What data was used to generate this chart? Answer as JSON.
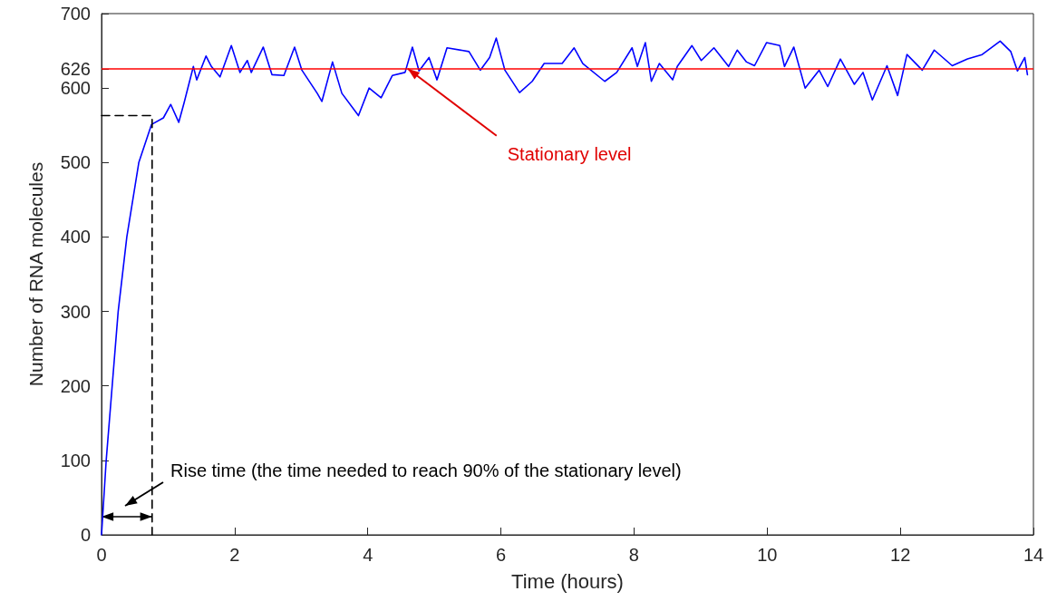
{
  "chart_data": {
    "type": "line",
    "xlabel": "Time (hours)",
    "ylabel": "Number of RNA molecules",
    "xlim": [
      0,
      14
    ],
    "xticks": [
      0,
      2,
      4,
      6,
      8,
      10,
      12,
      14
    ],
    "ylim": [
      0,
      700
    ],
    "yticks": [
      0,
      100,
      200,
      300,
      400,
      500,
      600,
      {
        "value": 626,
        "label": "626"
      },
      700
    ],
    "grid": false,
    "marker": "none",
    "line_style": "solid",
    "series": [
      {
        "color": "#0000ff",
        "x": [
          0,
          0.07,
          0.16,
          0.25,
          0.38,
          0.56,
          0.75,
          0.93,
          1.04,
          1.16,
          1.24,
          1.38,
          1.43,
          1.57,
          1.65,
          1.78,
          1.95,
          2.08,
          2.19,
          2.25,
          2.43,
          2.56,
          2.74,
          2.9,
          3.01,
          3.24,
          3.31,
          3.47,
          3.61,
          3.86,
          4.02,
          4.2,
          4.37,
          4.56,
          4.67,
          4.77,
          4.92,
          5.04,
          5.19,
          5.52,
          5.69,
          5.83,
          5.93,
          6.06,
          6.28,
          6.47,
          6.65,
          6.92,
          7.1,
          7.23,
          7.56,
          7.74,
          7.97,
          8.05,
          8.17,
          8.26,
          8.38,
          8.58,
          8.65,
          8.87,
          9.01,
          9.2,
          9.42,
          9.55,
          9.69,
          9.81,
          9.99,
          10.19,
          10.26,
          10.4,
          10.57,
          10.78,
          10.91,
          11.1,
          11.31,
          11.44,
          11.58,
          11.8,
          11.96,
          12.1,
          12.33,
          12.51,
          12.78,
          13.01,
          13.23,
          13.5,
          13.66,
          13.76,
          13.87,
          13.91
        ],
        "values": [
          0,
          100,
          200,
          300,
          400,
          500,
          551,
          560,
          578,
          554,
          580,
          629,
          611,
          643,
          629,
          615,
          657,
          621,
          637,
          621,
          655,
          618,
          617,
          655,
          624,
          593,
          582,
          635,
          593,
          563,
          600,
          587,
          617,
          621,
          655,
          623,
          641,
          611,
          654,
          649,
          624,
          641,
          667,
          624,
          594,
          609,
          633,
          633,
          654,
          633,
          609,
          621,
          654,
          629,
          661,
          609,
          633,
          611,
          629,
          657,
          637,
          654,
          629,
          651,
          635,
          630,
          661,
          657,
          629,
          655,
          600,
          624,
          602,
          639,
          605,
          621,
          584,
          630,
          590,
          645,
          624,
          651,
          630,
          639,
          645,
          663,
          649,
          623,
          641,
          618
        ]
      },
      {
        "color": "#000000",
        "line_style": "dashed",
        "x": [
          0,
          0.76,
          0.76
        ],
        "values": [
          563,
          563,
          0
        ]
      }
    ],
    "ref_lines": [
      {
        "axis": "y",
        "value": 626,
        "color": "#ff0000",
        "line_style": "solid"
      }
    ],
    "annotations": [
      {
        "text": "Stationary level",
        "x": 4.6,
        "y": 626
      },
      "Rise time (the time needed to reach 90% of the stationary level)"
    ]
  }
}
